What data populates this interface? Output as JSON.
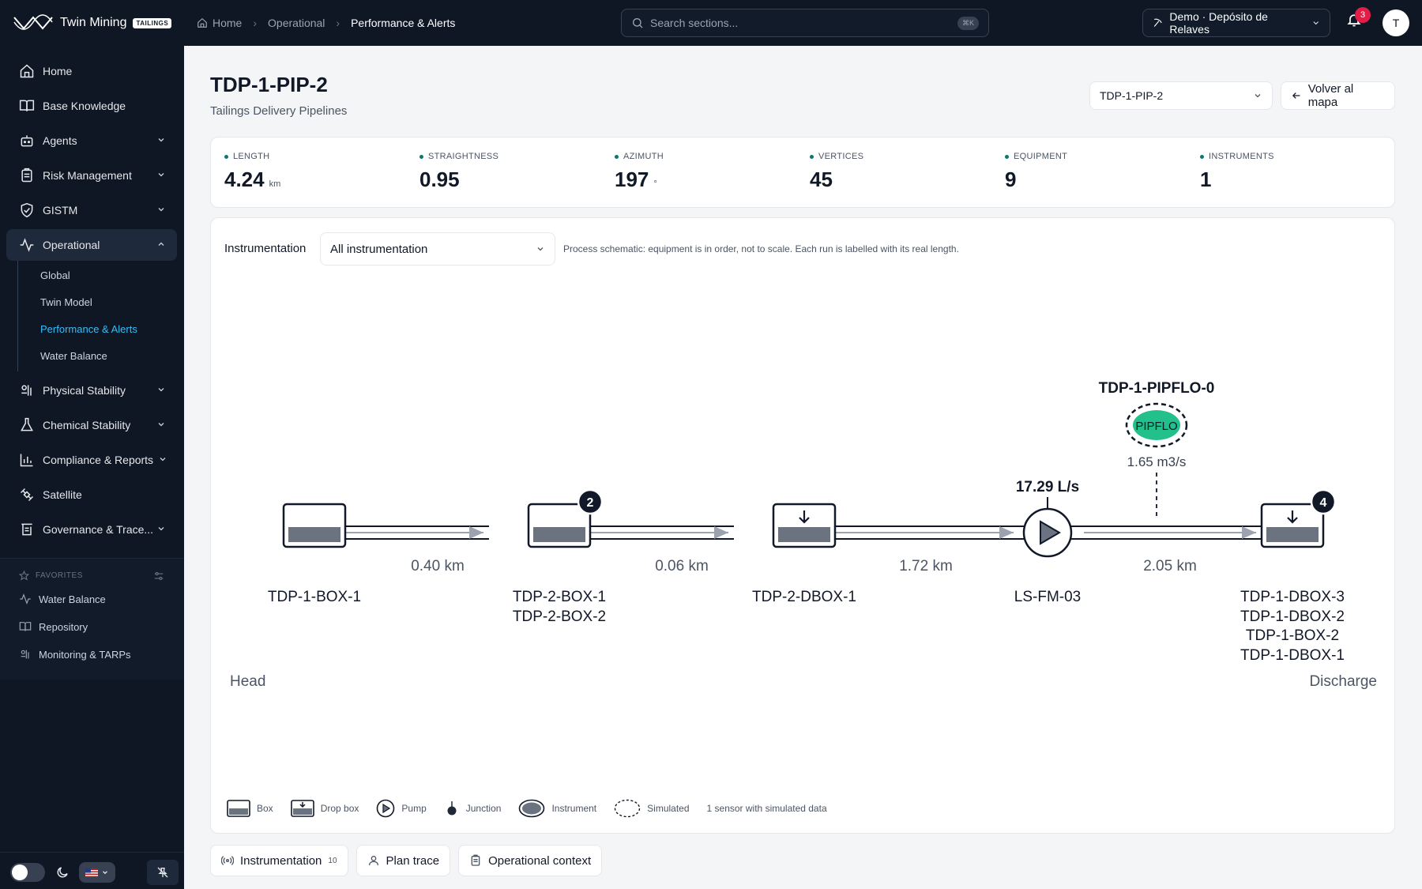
{
  "brand": {
    "name": "Twin Mining",
    "tag": "TAILINGS"
  },
  "breadcrumb": {
    "home": "Home",
    "section": "Operational",
    "current": "Performance & Alerts"
  },
  "search": {
    "placeholder": "Search sections...",
    "shortcut": "⌘K"
  },
  "workspace": {
    "label": "Demo · Depósito de Relaves"
  },
  "notifications": {
    "count": "3"
  },
  "user": {
    "initial": "T"
  },
  "sidebar": {
    "items": [
      {
        "label": "Home",
        "icon": "home-icon"
      },
      {
        "label": "Base Knowledge",
        "icon": "book-icon"
      },
      {
        "label": "Agents",
        "icon": "robot-icon"
      },
      {
        "label": "Risk Management",
        "icon": "clipboard-icon"
      },
      {
        "label": "GISTM",
        "icon": "shield-check-icon"
      },
      {
        "label": "Operational",
        "icon": "activity-icon"
      },
      {
        "label": "Physical Stability",
        "icon": "physical-stability-icon"
      },
      {
        "label": "Chemical Stability",
        "icon": "flask-icon"
      },
      {
        "label": "Compliance & Reports",
        "icon": "bar-chart-icon"
      },
      {
        "label": "Satellite",
        "icon": "satellite-icon"
      },
      {
        "label": "Governance & Trace...",
        "icon": "governance-icon"
      }
    ],
    "operational_sub": [
      "Global",
      "Twin Model",
      "Performance & Alerts",
      "Water Balance"
    ],
    "favorites_title": "FAVORITES",
    "favorites": [
      "Water Balance",
      "Repository",
      "Monitoring & TARPs"
    ]
  },
  "page": {
    "title": "TDP-1-PIP-2",
    "subtitle": "Tailings Delivery Pipelines",
    "pipeline_select": "TDP-1-PIP-2",
    "back": "Volver al mapa"
  },
  "stats": [
    {
      "label": "LENGTH",
      "value": "4.24",
      "unit": "km"
    },
    {
      "label": "STRAIGHTNESS",
      "value": "0.95",
      "unit": ""
    },
    {
      "label": "AZIMUTH",
      "value": "197",
      "unit": "°"
    },
    {
      "label": "VERTICES",
      "value": "45",
      "unit": ""
    },
    {
      "label": "EQUIPMENT",
      "value": "9",
      "unit": ""
    },
    {
      "label": "INSTRUMENTS",
      "value": "1",
      "unit": ""
    }
  ],
  "schematic": {
    "filter_label": "Instrumentation",
    "filter_value": "All instrumentation",
    "hint": "Process schematic: equipment is in order, not to scale. Each run is labelled with its real length.",
    "head": "Head",
    "discharge": "Discharge",
    "nodes": [
      {
        "kind": "box",
        "labels": [
          "TDP-1-BOX-1"
        ],
        "badge": ""
      },
      {
        "kind": "box",
        "labels": [
          "TDP-2-BOX-1",
          "TDP-2-BOX-2"
        ],
        "badge": "2"
      },
      {
        "kind": "drop-box",
        "labels": [
          "TDP-2-DBOX-1"
        ],
        "badge": ""
      },
      {
        "kind": "pump",
        "labels": [
          "LS-FM-03"
        ],
        "badge": "",
        "reading": "17.29 L/s"
      },
      {
        "kind": "drop-box",
        "labels": [
          "TDP-1-DBOX-3",
          "TDP-1-DBOX-2",
          "TDP-1-BOX-2",
          "TDP-1-DBOX-1"
        ],
        "badge": "4"
      }
    ],
    "runs": [
      "0.40 km",
      "0.06 km",
      "1.72 km",
      "2.05 km"
    ],
    "instrument": {
      "name": "TDP-1-PIPFLO-0",
      "tag": "PIPFLO",
      "reading": "1.65 m3/s",
      "color": "#22c08a"
    }
  },
  "legend": {
    "items": [
      "Box",
      "Drop box",
      "Pump",
      "Junction",
      "Instrument",
      "Simulated"
    ],
    "note": "1 sensor with simulated data"
  },
  "tabs": [
    {
      "label": "Instrumentation",
      "count": "10",
      "icon": "radio-signal-icon"
    },
    {
      "label": "Plan trace",
      "count": "",
      "icon": "person-pin-icon"
    },
    {
      "label": "Operational context",
      "count": "",
      "icon": "clipboard-icon"
    }
  ],
  "colors": {
    "sidebar_bg": "#0f1724",
    "accent": "#38bdf8",
    "instrument": "#22c08a",
    "badge": "#e11d48"
  }
}
